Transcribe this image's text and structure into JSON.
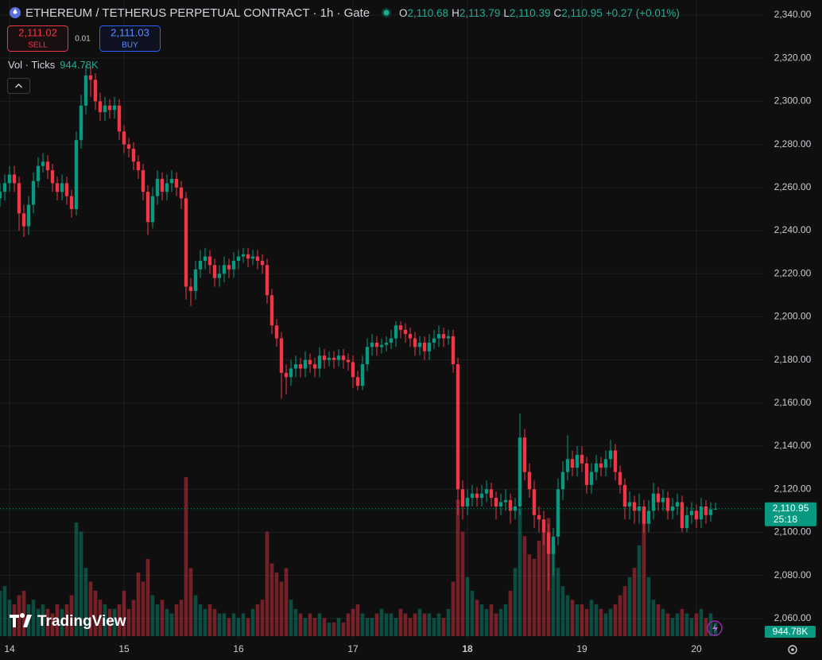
{
  "header": {
    "symbol": "ETHEREUM / TETHERUS PERPETUAL CONTRACT · 1h · Gate",
    "o_label": "O",
    "o": "2,110.68",
    "h_label": "H",
    "h": "2,113.79",
    "l_label": "L",
    "l": "2,110.39",
    "c_label": "C",
    "c": "2,110.95",
    "change": "+0.27 (+0.01%)"
  },
  "trade": {
    "sell_price": "2,111.02",
    "sell": "SELL",
    "spread": "0.01",
    "buy_price": "2,111.03",
    "buy": "BUY"
  },
  "indicator": {
    "name": "Vol · Ticks",
    "value": "944.78K"
  },
  "countdown": "25:18",
  "brand": "TradingView",
  "chart_data": {
    "type": "candlestick",
    "up_color": "#089981",
    "down_color": "#f23645",
    "grid": true,
    "ylim": [
      2050,
      2347
    ],
    "xlim": [
      0,
      160
    ],
    "yticks": [
      {
        "value": 2060,
        "label": "2,060.00"
      },
      {
        "value": 2080,
        "label": "2,080.00"
      },
      {
        "value": 2100,
        "label": "2,100.00"
      },
      {
        "value": 2120,
        "label": "2,120.00"
      },
      {
        "value": 2140,
        "label": "2,140.00"
      },
      {
        "value": 2160,
        "label": "2,160.00"
      },
      {
        "value": 2180,
        "label": "2,180.00"
      },
      {
        "value": 2200,
        "label": "2,200.00"
      },
      {
        "value": 2220,
        "label": "2,220.00"
      },
      {
        "value": 2240,
        "label": "2,240.00"
      },
      {
        "value": 2260,
        "label": "2,260.00"
      },
      {
        "value": 2280,
        "label": "2,280.00"
      },
      {
        "value": 2300,
        "label": "2,300.00"
      },
      {
        "value": 2320,
        "label": "2,320.00"
      },
      {
        "value": 2340,
        "label": "2,340.00"
      }
    ],
    "xticks": [
      {
        "value": 2,
        "label": "14"
      },
      {
        "value": 26,
        "label": "15"
      },
      {
        "value": 50,
        "label": "16"
      },
      {
        "value": 74,
        "label": "17"
      },
      {
        "value": 98,
        "label": "18"
      },
      {
        "value": 122,
        "label": "19"
      },
      {
        "value": 146,
        "label": "20"
      }
    ],
    "open": [
      2255,
      2258,
      2262,
      2266,
      2262,
      2248,
      2242,
      2252,
      2263,
      2270,
      2272,
      2268,
      2262,
      2258,
      2262,
      2256,
      2250,
      2282,
      2298,
      2312,
      2310,
      2300,
      2295,
      2298,
      2296,
      2298,
      2286,
      2280,
      2278,
      2272,
      2268,
      2258,
      2244,
      2256,
      2264,
      2258,
      2262,
      2264,
      2260,
      2255,
      2214,
      2212,
      2222,
      2226,
      2228,
      2224,
      2218,
      2220,
      2224,
      2222,
      2226,
      2228,
      2229,
      2227,
      2228,
      2226,
      2224,
      2210,
      2196,
      2190,
      2174,
      2172,
      2176,
      2178,
      2176,
      2180,
      2178,
      2176,
      2182,
      2180,
      2181,
      2180,
      2182,
      2180,
      2179,
      2172,
      2168,
      2178,
      2186,
      2188,
      2186,
      2187,
      2188,
      2190,
      2196,
      2194,
      2192,
      2190,
      2186,
      2188,
      2184,
      2188,
      2190,
      2192,
      2190,
      2191,
      2178,
      2120,
      2112,
      2116,
      2118,
      2116,
      2118,
      2120,
      2116,
      2112,
      2114,
      2115,
      2110,
      2112,
      2144,
      2128,
      2120,
      2108,
      2106,
      2100,
      2090,
      2098,
      2120,
      2128,
      2134,
      2130,
      2136,
      2132,
      2122,
      2128,
      2132,
      2130,
      2134,
      2138,
      2128,
      2122,
      2112,
      2114,
      2110,
      2112,
      2104,
      2110,
      2118,
      2114,
      2116,
      2110,
      2112,
      2114,
      2102,
      2108,
      2110,
      2106,
      2112,
      2108,
      2110.68
    ],
    "high": [
      2262,
      2266,
      2270,
      2270,
      2265,
      2252,
      2256,
      2267,
      2274,
      2276,
      2275,
      2271,
      2265,
      2266,
      2265,
      2259,
      2286,
      2303,
      2317,
      2316,
      2313,
      2304,
      2302,
      2301,
      2302,
      2301,
      2289,
      2283,
      2281,
      2275,
      2271,
      2261,
      2260,
      2268,
      2267,
      2266,
      2268,
      2267,
      2263,
      2258,
      2218,
      2226,
      2231,
      2232,
      2231,
      2227,
      2224,
      2228,
      2227,
      2230,
      2231,
      2232,
      2232,
      2231,
      2231,
      2229,
      2227,
      2213,
      2199,
      2193,
      2178,
      2180,
      2182,
      2181,
      2184,
      2183,
      2181,
      2186,
      2185,
      2184,
      2184,
      2185,
      2185,
      2183,
      2182,
      2175,
      2182,
      2190,
      2192,
      2191,
      2190,
      2191,
      2194,
      2198,
      2198,
      2197,
      2195,
      2193,
      2191,
      2191,
      2192,
      2194,
      2196,
      2195,
      2194,
      2194,
      2181,
      2124,
      2120,
      2122,
      2121,
      2122,
      2124,
      2123,
      2119,
      2118,
      2120,
      2118,
      2116,
      2155,
      2148,
      2132,
      2124,
      2112,
      2110,
      2104,
      2102,
      2125,
      2133,
      2145,
      2138,
      2140,
      2140,
      2135,
      2132,
      2136,
      2135,
      2138,
      2143,
      2141,
      2131,
      2125,
      2119,
      2117,
      2118,
      2115,
      2115,
      2123,
      2121,
      2120,
      2119,
      2116,
      2118,
      2117,
      2112,
      2114,
      2113,
      2116,
      2115,
      2114,
      2113.79
    ],
    "low": [
      2251,
      2254,
      2258,
      2258,
      2240,
      2237,
      2238,
      2248,
      2260,
      2267,
      2264,
      2258,
      2254,
      2254,
      2252,
      2246,
      2247,
      2278,
      2294,
      2302,
      2296,
      2291,
      2291,
      2292,
      2292,
      2282,
      2276,
      2274,
      2268,
      2264,
      2254,
      2238,
      2241,
      2252,
      2254,
      2254,
      2258,
      2256,
      2250,
      2208,
      2205,
      2208,
      2218,
      2222,
      2220,
      2214,
      2214,
      2216,
      2218,
      2218,
      2222,
      2225,
      2223,
      2224,
      2222,
      2220,
      2206,
      2192,
      2186,
      2162,
      2164,
      2168,
      2172,
      2172,
      2172,
      2174,
      2172,
      2172,
      2176,
      2177,
      2176,
      2177,
      2176,
      2175,
      2167,
      2166,
      2166,
      2175,
      2182,
      2182,
      2183,
      2184,
      2185,
      2186,
      2190,
      2188,
      2186,
      2182,
      2182,
      2180,
      2180,
      2185,
      2186,
      2186,
      2187,
      2174,
      2108,
      2106,
      2108,
      2112,
      2112,
      2112,
      2114,
      2112,
      2106,
      2108,
      2110,
      2104,
      2106,
      2108,
      2124,
      2116,
      2102,
      2100,
      2094,
      2073,
      2080,
      2094,
      2115,
      2124,
      2126,
      2126,
      2128,
      2118,
      2118,
      2124,
      2126,
      2126,
      2130,
      2124,
      2118,
      2106,
      2106,
      2104,
      2104,
      2100,
      2100,
      2106,
      2110,
      2110,
      2106,
      2106,
      2108,
      2100,
      2100,
      2104,
      2102,
      2102,
      2104,
      2105,
      2110.39
    ],
    "close": [
      2258,
      2262,
      2266,
      2262,
      2248,
      2242,
      2252,
      2263,
      2270,
      2272,
      2268,
      2262,
      2258,
      2262,
      2256,
      2250,
      2282,
      2298,
      2312,
      2310,
      2300,
      2295,
      2298,
      2296,
      2298,
      2286,
      2280,
      2278,
      2272,
      2268,
      2258,
      2244,
      2256,
      2264,
      2258,
      2262,
      2264,
      2260,
      2255,
      2214,
      2212,
      2222,
      2226,
      2228,
      2224,
      2218,
      2220,
      2224,
      2222,
      2226,
      2228,
      2229,
      2227,
      2228,
      2226,
      2224,
      2210,
      2196,
      2190,
      2174,
      2172,
      2176,
      2178,
      2176,
      2180,
      2178,
      2176,
      2182,
      2180,
      2181,
      2180,
      2182,
      2180,
      2179,
      2172,
      2168,
      2178,
      2186,
      2188,
      2186,
      2187,
      2188,
      2190,
      2196,
      2194,
      2192,
      2190,
      2186,
      2188,
      2184,
      2188,
      2190,
      2192,
      2190,
      2191,
      2178,
      2120,
      2112,
      2116,
      2118,
      2116,
      2118,
      2120,
      2116,
      2112,
      2114,
      2115,
      2110,
      2112,
      2144,
      2128,
      2120,
      2108,
      2106,
      2100,
      2090,
      2098,
      2120,
      2128,
      2134,
      2130,
      2136,
      2132,
      2122,
      2128,
      2132,
      2130,
      2134,
      2138,
      2128,
      2122,
      2112,
      2114,
      2110,
      2112,
      2104,
      2110,
      2118,
      2114,
      2116,
      2110,
      2112,
      2114,
      2102,
      2108,
      2110,
      2106,
      2112,
      2108,
      2110.68,
      2110.95
    ],
    "volume": [
      1000,
      1100,
      800,
      700,
      900,
      1000,
      700,
      800,
      600,
      700,
      600,
      500,
      700,
      600,
      700,
      900,
      2500,
      2300,
      1500,
      1200,
      1000,
      800,
      700,
      600,
      600,
      700,
      1000,
      600,
      800,
      1400,
      1200,
      1700,
      900,
      700,
      800,
      600,
      500,
      700,
      800,
      3500,
      1500,
      900,
      700,
      600,
      700,
      600,
      500,
      500,
      400,
      500,
      400,
      500,
      400,
      600,
      700,
      800,
      2300,
      1600,
      1400,
      1200,
      1500,
      800,
      600,
      500,
      400,
      500,
      400,
      500,
      400,
      300,
      300,
      400,
      300,
      500,
      600,
      700,
      500,
      400,
      400,
      500,
      600,
      500,
      500,
      400,
      600,
      500,
      400,
      500,
      600,
      500,
      500,
      400,
      500,
      400,
      600,
      1200,
      3000,
      2300,
      1300,
      1000,
      800,
      700,
      600,
      700,
      500,
      600,
      700,
      1000,
      1500,
      2800,
      2200,
      1800,
      1700,
      2100,
      2300,
      2600,
      2000,
      1500,
      1100,
      900,
      800,
      700,
      700,
      600,
      800,
      700,
      600,
      500,
      600,
      700,
      900,
      1100,
      1300,
      1500,
      2000,
      2600,
      1300,
      800,
      700,
      600,
      500,
      400,
      500,
      600,
      500,
      400,
      500,
      600,
      400,
      500,
      300
    ]
  }
}
